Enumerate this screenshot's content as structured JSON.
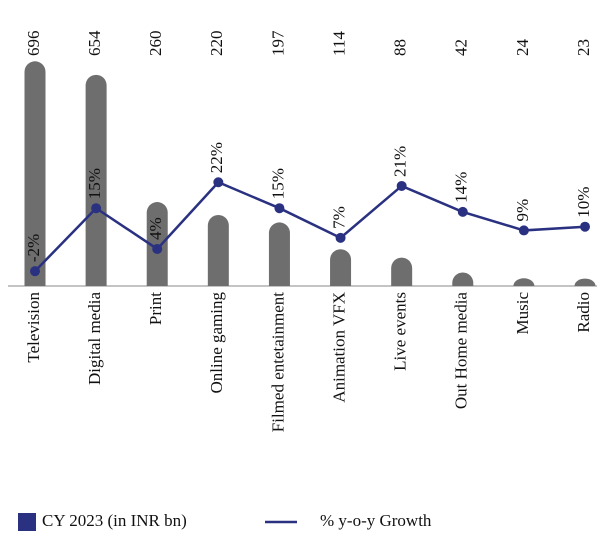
{
  "chart_data": {
    "type": "bar+line",
    "categories": [
      "Television",
      "Digital media",
      "Print",
      "Online gaming",
      "Filmed entetainment",
      "Animation VFX",
      "Live events",
      "Out Home media",
      "Music",
      "Radio"
    ],
    "series": [
      {
        "name": "CY 2023 (in INR bn)",
        "type": "bar",
        "color": "#6e6e6e",
        "values": [
          696,
          654,
          260,
          220,
          197,
          114,
          88,
          42,
          24,
          23
        ]
      },
      {
        "name": "% y-o-y Growth",
        "type": "line",
        "axis": "y2",
        "color": "#2a3180",
        "values": [
          -2,
          15,
          4,
          22,
          15,
          7,
          21,
          14,
          9,
          10
        ],
        "value_labels": [
          "-2%",
          "15%",
          "4%",
          "22%",
          "15%",
          "7%",
          "21%",
          "14%",
          "9%",
          "10%"
        ]
      }
    ],
    "ylim": [
      0,
      700
    ],
    "y2lim": [
      -6,
      55
    ]
  }
}
